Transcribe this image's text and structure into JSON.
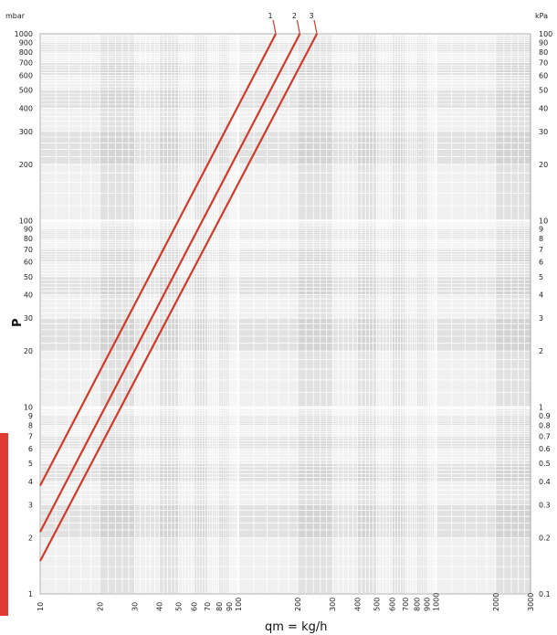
{
  "chart_data": {
    "type": "line",
    "xlabel": "qm = kg/h",
    "ylabel": "P",
    "x_scale": "log",
    "y_scale": "log",
    "xlim": [
      10,
      3000
    ],
    "ylim_mbar": [
      1,
      1000
    ],
    "ylim_kpa": [
      0.1,
      100
    ],
    "y_left_unit": "mbar",
    "y_right_unit": "kPa",
    "x_ticks": [
      "10",
      "20",
      "30",
      "40",
      "50",
      "60",
      "70",
      "80",
      "90",
      "100",
      "200",
      "300",
      "400",
      "500",
      "600",
      "700",
      "800",
      "900",
      "1000",
      "2000",
      "3000"
    ],
    "y_left_ticks": [
      "1",
      "2",
      "3",
      "4",
      "5",
      "6",
      "7",
      "8",
      "9",
      "10",
      "20",
      "30",
      "40",
      "50",
      "60",
      "70",
      "80",
      "90",
      "100",
      "200",
      "300",
      "400",
      "500",
      "600",
      "700",
      "800",
      "900",
      "1000"
    ],
    "y_right_ticks": [
      "0.1",
      "0.2",
      "0.3",
      "0.4",
      "0.5",
      "0.6",
      "0.7",
      "0.8",
      "0.9",
      "1",
      "2",
      "3",
      "4",
      "5",
      "6",
      "7",
      "8",
      "9",
      "10",
      "20",
      "30",
      "40",
      "50",
      "60",
      "70",
      "80",
      "90",
      "100"
    ],
    "grid": true,
    "series": [
      {
        "name": "1",
        "x": [
          10,
          155
        ],
        "y": [
          3.8,
          1000
        ],
        "color": "#d23a2a"
      },
      {
        "name": "2",
        "x": [
          10,
          205
        ],
        "y": [
          2.15,
          1000
        ],
        "color": "#d23a2a"
      },
      {
        "name": "3",
        "x": [
          10,
          250
        ],
        "y": [
          1.5,
          1000
        ],
        "color": "#d23a2a"
      }
    ]
  }
}
